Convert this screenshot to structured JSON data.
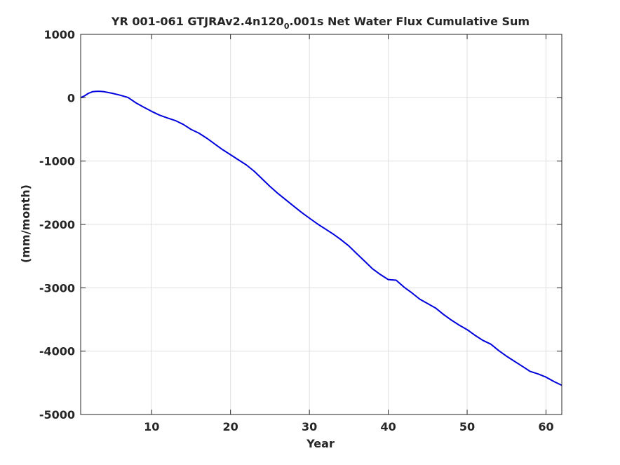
{
  "chart_data": {
    "type": "line",
    "title_main": "YR 001-061 GTJRAv2.4n120",
    "title_sub": "0",
    "title_tail": ".001s Net Water Flux Cumulative Sum",
    "xlabel": "Year",
    "ylabel": "(mm/month)",
    "xlim": [
      1,
      62
    ],
    "ylim": [
      -5000,
      1000
    ],
    "xticks": [
      10,
      20,
      30,
      40,
      50,
      60
    ],
    "yticks": [
      1000,
      0,
      -1000,
      -2000,
      -3000,
      -4000,
      -5000
    ],
    "grid": true,
    "line_color": "#0000dd",
    "series": [
      {
        "x": [
          1,
          1.5,
          2,
          2.5,
          3,
          3.5,
          4,
          5,
          6,
          7,
          8,
          9,
          10,
          11,
          12,
          13,
          14,
          15,
          16,
          17,
          18,
          19,
          20,
          21,
          22,
          23,
          24,
          25,
          26,
          27,
          28,
          29,
          30,
          31,
          32,
          33,
          34,
          35,
          36,
          37,
          38,
          39,
          40,
          41,
          42,
          43,
          44,
          45,
          46,
          47,
          48,
          49,
          50,
          51,
          52,
          53,
          54,
          55,
          56,
          57,
          58,
          59,
          60,
          61,
          62
        ],
        "y": [
          0,
          30,
          70,
          95,
          100,
          100,
          95,
          70,
          40,
          5,
          -80,
          -150,
          -215,
          -275,
          -320,
          -360,
          -420,
          -500,
          -560,
          -640,
          -730,
          -820,
          -900,
          -980,
          -1060,
          -1160,
          -1280,
          -1400,
          -1510,
          -1610,
          -1710,
          -1810,
          -1900,
          -1990,
          -2070,
          -2150,
          -2240,
          -2340,
          -2460,
          -2580,
          -2700,
          -2790,
          -2870,
          -2880,
          -2990,
          -3080,
          -3180,
          -3250,
          -3320,
          -3420,
          -3510,
          -3590,
          -3660,
          -3750,
          -3830,
          -3890,
          -3990,
          -4080,
          -4160,
          -4240,
          -4320,
          -4360,
          -4410,
          -4480,
          -4540
        ]
      }
    ]
  }
}
